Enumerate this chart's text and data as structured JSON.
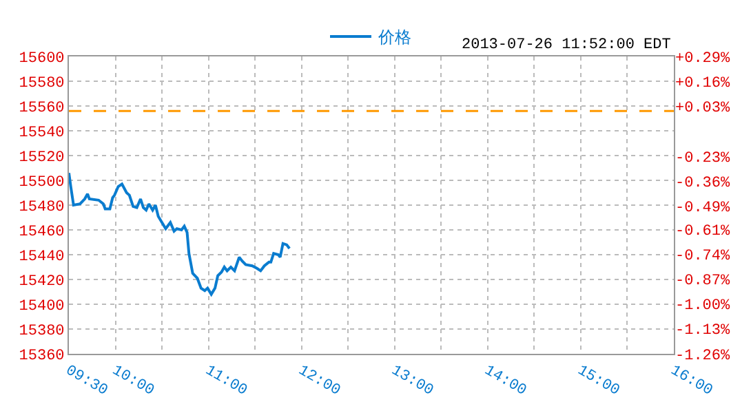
{
  "chart_data": {
    "type": "line",
    "subtitle": "2013-07-26 11:52:00 EDT",
    "x": [
      9.5,
      9.52,
      9.55,
      9.62,
      9.67,
      9.7,
      9.72,
      9.82,
      9.87,
      9.89,
      9.94,
      9.97,
      9.99,
      10.03,
      10.07,
      10.12,
      10.15,
      10.19,
      10.23,
      10.27,
      10.3,
      10.33,
      10.36,
      10.4,
      10.43,
      10.46,
      10.5,
      10.54,
      10.59,
      10.63,
      10.66,
      10.71,
      10.74,
      10.77,
      10.79,
      10.83,
      10.88,
      10.92,
      10.96,
      10.99,
      11.03,
      11.07,
      11.1,
      11.14,
      11.17,
      11.2,
      11.24,
      11.28,
      11.33,
      11.36,
      11.4,
      11.47,
      11.52,
      11.56,
      11.6,
      11.65,
      11.67,
      11.7,
      11.75,
      11.77,
      11.8,
      11.84,
      11.87
    ],
    "series": [
      {
        "name": "价格",
        "color": "#0a7ccf",
        "values": [
          15506,
          15495,
          15480,
          15481,
          15485,
          15489,
          15485,
          15484,
          15481,
          15477,
          15477,
          15486,
          15488,
          15495,
          15497,
          15490,
          15488,
          15479,
          15478,
          15485,
          15478,
          15476,
          15481,
          15476,
          15480,
          15471,
          15466,
          15461,
          15466,
          15459,
          15461,
          15460,
          15463,
          15458,
          15441,
          15425,
          15421,
          15413,
          15411,
          15413,
          15408,
          15413,
          15423,
          15426,
          15430,
          15427,
          15430,
          15427,
          15438,
          15435,
          15432,
          15431,
          15429,
          15427,
          15431,
          15434,
          15434,
          15441,
          15440,
          15438,
          15449,
          15448,
          15445
        ]
      }
    ],
    "xlim": [
      9.5,
      16
    ],
    "xticks": [
      {
        "value": 9.5,
        "label": "09:30"
      },
      {
        "value": 10,
        "label": "10:00"
      },
      {
        "value": 10.5,
        "label": null
      },
      {
        "value": 11,
        "label": "11:00"
      },
      {
        "value": 11.5,
        "label": null
      },
      {
        "value": 12,
        "label": "12:00"
      },
      {
        "value": 12.5,
        "label": null
      },
      {
        "value": 13,
        "label": "13:00"
      },
      {
        "value": 13.5,
        "label": null
      },
      {
        "value": 14,
        "label": "14:00"
      },
      {
        "value": 14.5,
        "label": null
      },
      {
        "value": 15,
        "label": "15:00"
      },
      {
        "value": 15.5,
        "label": null
      },
      {
        "value": 16,
        "label": "16:00"
      }
    ],
    "ylim": [
      15360,
      15600
    ],
    "yticks": [
      15360,
      15380,
      15400,
      15420,
      15440,
      15460,
      15480,
      15500,
      15520,
      15540,
      15560,
      15580,
      15600
    ],
    "y2lim": [
      -1.26,
      0.29
    ],
    "y2ticks": [
      {
        "value": -1.26,
        "label": "-1.26%"
      },
      {
        "value": -1.13,
        "label": "-1.13%"
      },
      {
        "value": -1.0,
        "label": "-1.00%"
      },
      {
        "value": -0.87,
        "label": "-0.87%"
      },
      {
        "value": -0.74,
        "label": "-0.74%"
      },
      {
        "value": -0.61,
        "label": "-0.61%"
      },
      {
        "value": -0.49,
        "label": "-0.49%"
      },
      {
        "value": -0.36,
        "label": "-0.36%"
      },
      {
        "value": -0.23,
        "label": "-0.23%"
      },
      {
        "value": -0.1,
        "label": null
      },
      {
        "value": 0.03,
        "label": "+0.03%"
      },
      {
        "value": 0.16,
        "label": "+0.16%"
      },
      {
        "value": 0.29,
        "label": "+0.29%"
      }
    ],
    "ref_lines": [
      {
        "axis": "y",
        "value": 15556,
        "color": "#ff9900",
        "line_style": "dashed"
      }
    ],
    "grid": true,
    "legend": "top",
    "marker": "none",
    "line_style": "solid"
  }
}
